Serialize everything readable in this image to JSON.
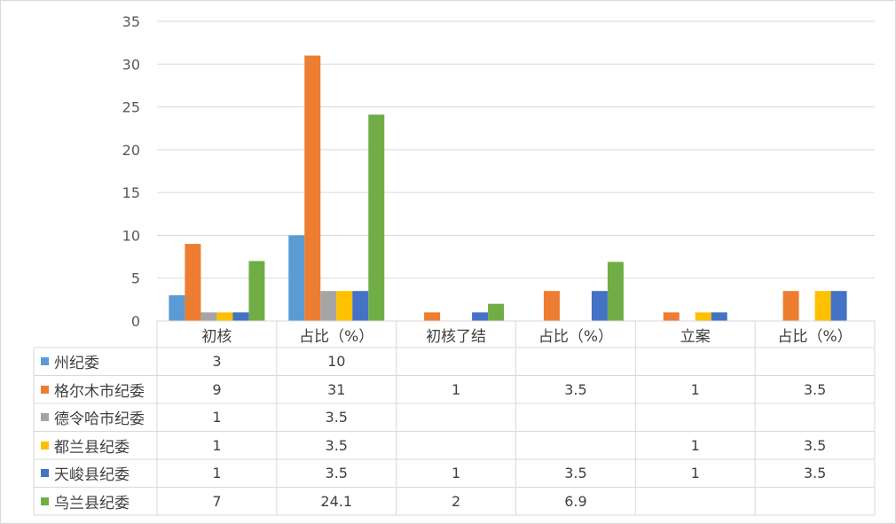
{
  "chart_data": {
    "type": "bar",
    "categories": [
      "初核",
      "占比（%）",
      "初核了结",
      "占比（%）",
      "立案",
      "占比（%）"
    ],
    "series": [
      {
        "name": "州纪委",
        "color": "#5b9bd5",
        "values": [
          3,
          10,
          null,
          null,
          null,
          null
        ]
      },
      {
        "name": "格尔木市纪委",
        "color": "#ed7d31",
        "values": [
          9,
          31,
          1,
          3.5,
          1,
          3.5
        ]
      },
      {
        "name": "德令哈市纪委",
        "color": "#a5a5a5",
        "values": [
          1,
          3.5,
          null,
          null,
          null,
          null
        ]
      },
      {
        "name": "都兰县纪委",
        "color": "#ffc000",
        "values": [
          1,
          3.5,
          null,
          null,
          1,
          3.5
        ]
      },
      {
        "name": "天峻县纪委",
        "color": "#4472c4",
        "values": [
          1,
          3.5,
          1,
          3.5,
          1,
          3.5
        ]
      },
      {
        "name": "乌兰县纪委",
        "color": "#70ad47",
        "values": [
          7,
          24.1,
          2,
          6.9,
          null,
          null
        ]
      }
    ],
    "table_rows": [
      [
        "3",
        "10",
        "",
        "",
        "",
        ""
      ],
      [
        "9",
        "31",
        "1",
        "3.5",
        "1",
        "3.5"
      ],
      [
        "1",
        "3.5",
        "",
        "",
        "",
        ""
      ],
      [
        "1",
        "3.5",
        "",
        "",
        "1",
        "3.5"
      ],
      [
        "1",
        "3.5",
        "1",
        "3.5",
        "1",
        "3.5"
      ],
      [
        "7",
        "24.1",
        "2",
        "6.9",
        "",
        ""
      ]
    ],
    "yticks": [
      "0",
      "5",
      "10",
      "15",
      "20",
      "25",
      "30",
      "35"
    ],
    "ylim": [
      0,
      35
    ],
    "grid": true,
    "legend": "data-table"
  }
}
